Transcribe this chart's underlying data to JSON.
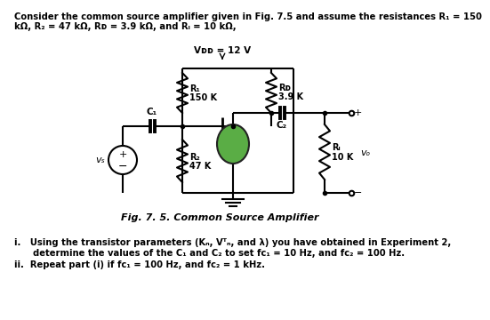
{
  "title_line1": "Consider the common source amplifier given in Fig. 7.5 and assume the resistances R₁ = 150",
  "title_line2": "kΩ, R₂ = 47 kΩ, Rᴅ = 3.9 kΩ, and Rₗ = 10 kΩ,",
  "fig_caption": "Fig. 7. 5. Common Source Amplifier",
  "vdd_label": "Vᴅᴅ = 12 V",
  "r1_label1": "R₁",
  "r1_label2": "150 K",
  "r2_label1": "R₂",
  "r2_label2": "47 K",
  "rd_label1": "Rᴅ",
  "rd_label2": "3.9 K",
  "rl_label1": "Rₗ",
  "rl_label2": "10 K",
  "c1_label": "C₁",
  "c2_label": "C₂",
  "vs_label": "vₛ",
  "vo_label": "vₒ",
  "plus_sign": "+",
  "minus_sign": "−",
  "q1a": "i.   Using the transistor parameters (Kₙ, Vᵀₙ, and λ) you have obtained in Experiment 2,",
  "q1b": "      determine the values of the C₁ and C₂ to set fᴄ₁ = 10 Hz, and fᴄ₂ = 100 Hz.",
  "q2": "ii.  Repeat part (i) if fᴄ₁ = 100 Hz, and fᴄ₂ = 1 kHz.",
  "bg_color": "#ffffff",
  "text_color": "#000000",
  "mosfet_color": "#5aad45",
  "line_color": "#000000",
  "line_width": 1.5
}
